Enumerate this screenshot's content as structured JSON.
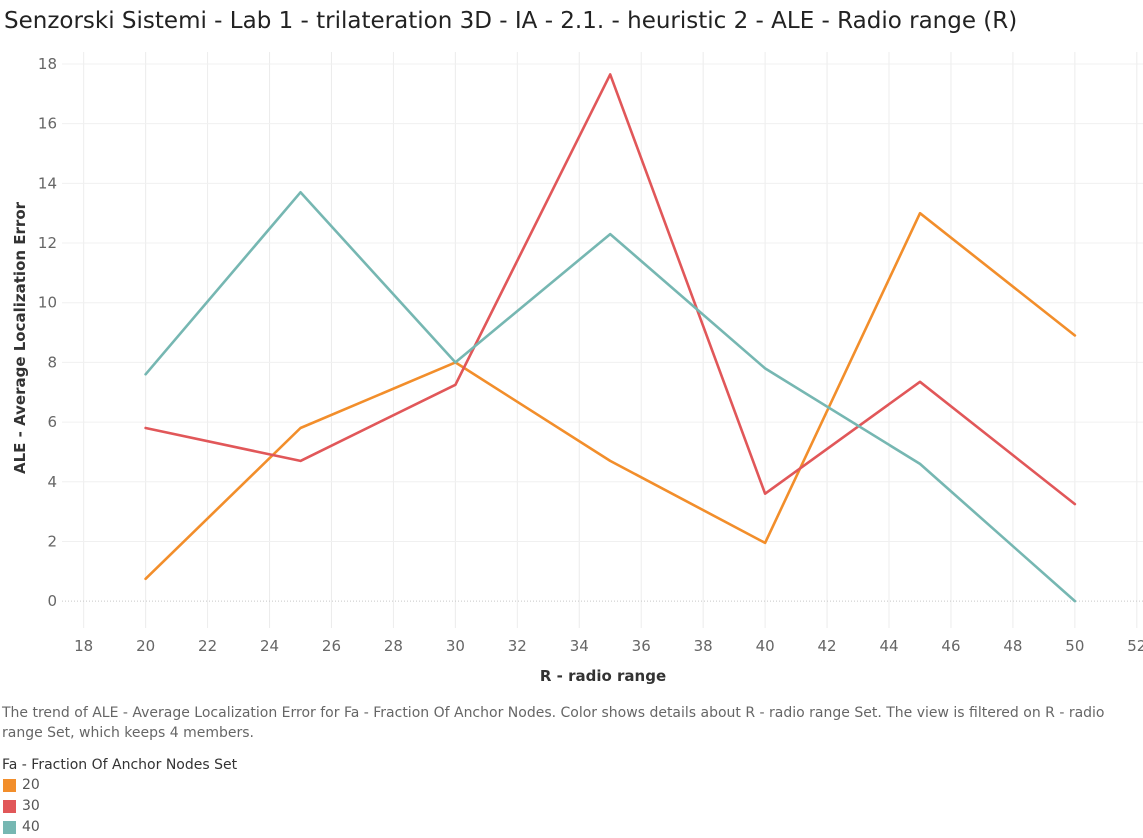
{
  "title": "Senzorski Sistemi - Lab 1 - trilateration 3D - IA - 2.1. - heuristic 2 - ALE - Radio range (R)",
  "caption": "The trend  of ALE - Average Localization Error for Fa - Fraction Of Anchor Nodes.  Color shows details about R - radio range Set. The view is filtered on R - radio range Set, which keeps 4 members.",
  "legend": {
    "title": "Fa - Fraction Of Anchor Nodes Set"
  },
  "chart_data": {
    "type": "line",
    "title": "Senzorski Sistemi - Lab 1 - trilateration 3D - IA - 2.1. - heuristic 2 - ALE - Radio range (R)",
    "xlabel": "R - radio range",
    "ylabel": "ALE - Average Localization Error",
    "xlim": [
      17.3,
      52.2
    ],
    "ylim": [
      -0.9,
      18.4
    ],
    "xticks": [
      18,
      20,
      22,
      24,
      26,
      28,
      30,
      32,
      34,
      36,
      38,
      40,
      42,
      44,
      46,
      48,
      50,
      52
    ],
    "yticks": [
      0,
      2,
      4,
      6,
      8,
      10,
      12,
      14,
      16,
      18
    ],
    "grid": true,
    "legend_position": "bottom-left",
    "x": [
      20,
      25,
      30,
      35,
      40,
      45,
      50
    ],
    "series": [
      {
        "name": "20",
        "color": "#f28e2b",
        "values": [
          0.75,
          5.8,
          8.0,
          4.7,
          1.95,
          13.0,
          8.9
        ]
      },
      {
        "name": "30",
        "color": "#e15759",
        "values": [
          5.8,
          4.7,
          7.25,
          17.65,
          3.6,
          7.35,
          3.25
        ]
      },
      {
        "name": "40",
        "color": "#76b7b2",
        "values": [
          7.6,
          13.7,
          8.0,
          12.3,
          7.8,
          4.6,
          0.0
        ]
      }
    ]
  }
}
